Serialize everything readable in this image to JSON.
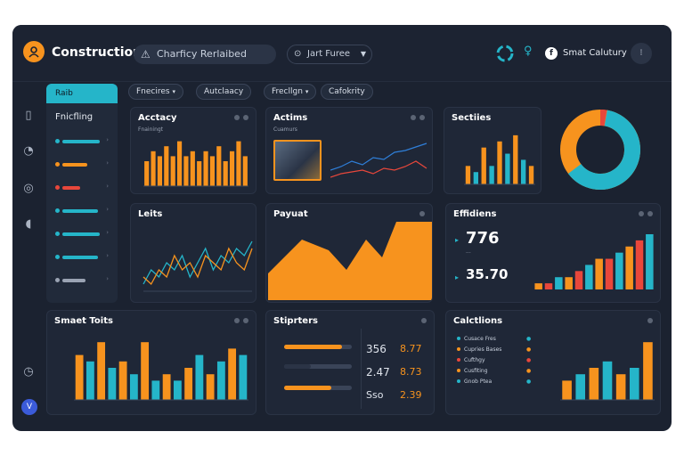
{
  "app": {
    "title": "Construction"
  },
  "header": {
    "search_text": "Charficy Rerlaibed",
    "select_text": "Jart Furee",
    "user_name": "Smat Calutury"
  },
  "nav": {
    "tab_label": "Raib",
    "title": "Fnicfling",
    "items": [
      {
        "color": "#25b5c9",
        "width": 42
      },
      {
        "color": "#f7931e",
        "width": 28
      },
      {
        "color": "#e8473b",
        "width": 20
      },
      {
        "color": "#25b5c9",
        "width": 40
      },
      {
        "color": "#25b5c9",
        "width": 42
      },
      {
        "color": "#25b5c9",
        "width": 40
      },
      {
        "color": "#9aa3b3",
        "width": 26
      }
    ]
  },
  "filters": [
    "Fnecires",
    "Autclaacy",
    "Frecllgn",
    "Cafokrity"
  ],
  "cards": {
    "accuracy": {
      "title": "Acctacy",
      "subtitle": "Fnainingt"
    },
    "actions": {
      "title": "Actims",
      "subtitle": "Cuamurs"
    },
    "sections": {
      "title": "Sectiies"
    },
    "lefts": {
      "title": "Leits"
    },
    "payout": {
      "title": "Payuat"
    },
    "efficiency": {
      "title": "Effidiens",
      "value_1": "776",
      "value_2": "35.70"
    },
    "smart_tools": {
      "title": "Smaet Toits"
    },
    "signers": {
      "title": "Stiprters",
      "values": [
        {
          "left": "356",
          "right": "8.77"
        },
        {
          "left": "2.47",
          "right": "8.73"
        },
        {
          "left": "Sso",
          "right": "2.39"
        }
      ]
    },
    "collections": {
      "title": "Calctlions",
      "legend": [
        {
          "label": "Cusace Fres",
          "color": "#25b5c9"
        },
        {
          "label": "Cupries Bases",
          "color": "#f7931e"
        },
        {
          "label": "Cufthgy",
          "color": "#e8473b"
        },
        {
          "label": "Cusfiting",
          "color": "#f7931e"
        },
        {
          "label": "Gnob Ptea",
          "color": "#25b5c9"
        }
      ]
    }
  },
  "colors": {
    "accent": "#f7931e",
    "teal": "#25b5c9",
    "red": "#e8473b",
    "bg": "#1b2230",
    "card": "#1f2737"
  },
  "chart_data": [
    {
      "type": "bar",
      "title": "Acctacy",
      "values": [
        5,
        7,
        6,
        8,
        6,
        9,
        6,
        7,
        5,
        7,
        6,
        8,
        5,
        7,
        9,
        6
      ]
    },
    {
      "type": "bar",
      "title": "Sectiies",
      "series": [
        {
          "name": "",
          "values": [
            3,
            2,
            6,
            3,
            7,
            5,
            8,
            4,
            3
          ]
        }
      ]
    },
    {
      "type": "pie",
      "slices": [
        {
          "value": 62,
          "color": "#25b5c9"
        },
        {
          "value": 38,
          "color": "#f7931e"
        }
      ]
    },
    {
      "type": "line",
      "title": "Leits",
      "series": [
        {
          "name": "",
          "values": [
            1,
            3,
            2,
            4,
            3,
            5,
            2,
            4,
            6,
            3,
            5,
            4,
            6,
            5,
            7
          ]
        },
        {
          "name": "",
          "values": [
            2,
            1,
            3,
            2,
            5,
            3,
            4,
            2,
            5,
            4,
            3,
            6,
            4,
            3,
            6
          ]
        }
      ]
    },
    {
      "type": "area",
      "title": "Payuat",
      "values": [
        2,
        4,
        8,
        6,
        5,
        9,
        7,
        10,
        10
      ]
    },
    {
      "type": "bar",
      "title": "Effidiens",
      "values": [
        1,
        1,
        2,
        2,
        3,
        4,
        5,
        5,
        6,
        7,
        8,
        9
      ]
    },
    {
      "type": "bar",
      "title": "Smaet Toits",
      "values": [
        7,
        6,
        9,
        5,
        6,
        4,
        9,
        3,
        4,
        3,
        5,
        7,
        4,
        6,
        8,
        7
      ]
    },
    {
      "type": "bar",
      "title": "Calctlions",
      "values": [
        3,
        4,
        5,
        6,
        4,
        5,
        9
      ]
    }
  ]
}
